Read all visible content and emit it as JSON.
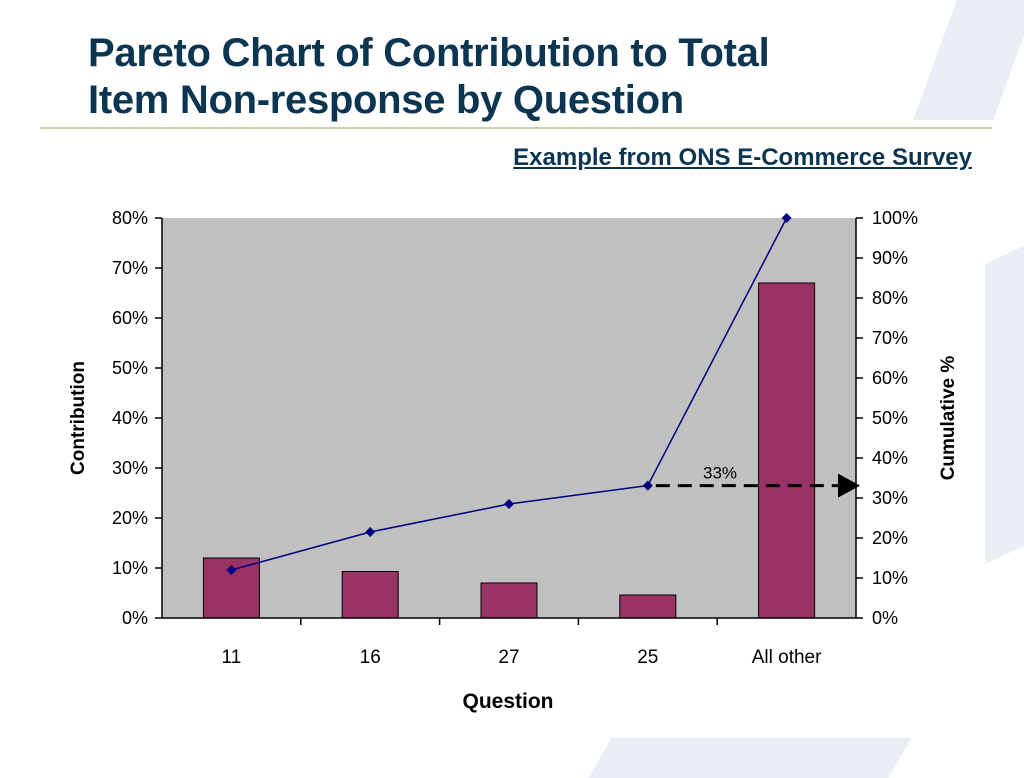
{
  "slide": {
    "title_line1": "Pareto Chart of Contribution to Total",
    "title_line2": "Item Non-response by Question",
    "subtitle": "Example from ONS E-Commerce Survey"
  },
  "colors": {
    "title": "#0b3550",
    "plot_bg": "#c0c0c0",
    "bar_fill": "#993366",
    "line": "#000080",
    "marker": "#000080"
  },
  "chart_data": {
    "type": "bar",
    "categories": [
      "11",
      "16",
      "27",
      "25",
      "All other"
    ],
    "xlabel": "Question",
    "ylabel": "Contribution",
    "y2label": "Cumulative %",
    "ylim": [
      0,
      0.8
    ],
    "y2lim": [
      0,
      1.0
    ],
    "yticks": [
      "0%",
      "10%",
      "20%",
      "30%",
      "40%",
      "50%",
      "60%",
      "70%",
      "80%"
    ],
    "y2ticks": [
      "0%",
      "10%",
      "20%",
      "30%",
      "40%",
      "50%",
      "60%",
      "70%",
      "80%",
      "90%",
      "100%"
    ],
    "grid": false,
    "series": [
      {
        "type": "bar",
        "axis": "left",
        "values": [
          0.12,
          0.093,
          0.07,
          0.046,
          0.67
        ]
      },
      {
        "type": "line",
        "axis": "right",
        "values": [
          0.12,
          0.215,
          0.285,
          0.331,
          1.0
        ]
      }
    ],
    "annotations": [
      {
        "text": "33%",
        "value": 0.33,
        "style": "dashed-arrow-to-right-axis"
      }
    ]
  }
}
